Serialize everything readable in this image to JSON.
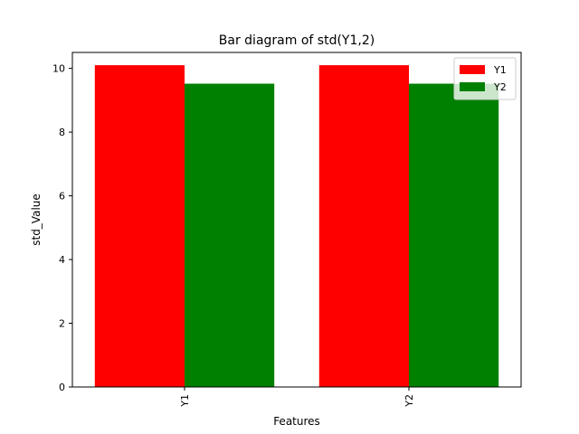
{
  "chart_data": {
    "type": "bar",
    "title": "Bar diagram of std(Y1,2)",
    "xlabel": "Features",
    "ylabel": "std_Value",
    "categories": [
      "Y1",
      "Y2"
    ],
    "series": [
      {
        "name": "Y1",
        "color": "#ff0000",
        "values": [
          10.1,
          10.1
        ]
      },
      {
        "name": "Y2",
        "color": "#008000",
        "values": [
          9.52,
          9.52
        ]
      }
    ],
    "ylim": [
      0,
      10.5
    ],
    "yticks": [
      "0",
      "2",
      "4",
      "6",
      "8",
      "10"
    ],
    "grid": false,
    "legend": "top-right",
    "xtick_rotation": "vertical"
  }
}
